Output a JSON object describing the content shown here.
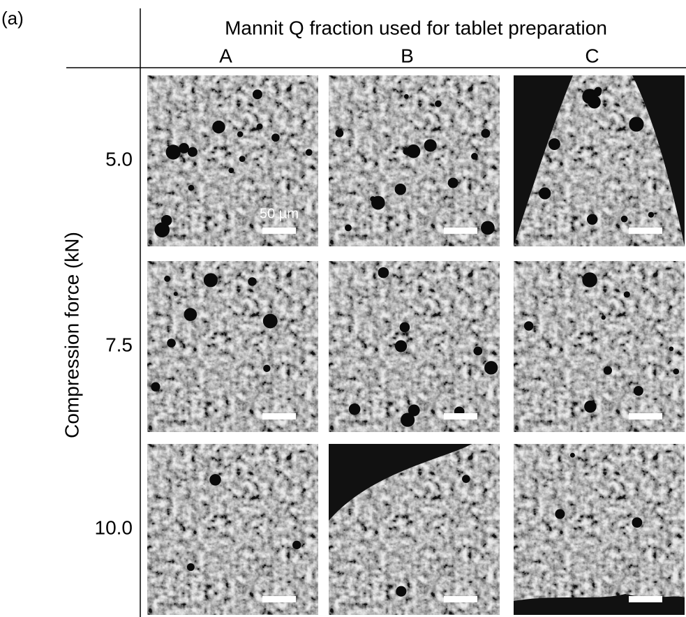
{
  "panel_label": "(a)",
  "header": {
    "title": "Mannit Q fraction used for tablet preparation",
    "columns": [
      "A",
      "B",
      "C"
    ]
  },
  "rows": {
    "title": "Compression force (kN)",
    "labels": [
      "5.0",
      "7.5",
      "10.0"
    ]
  },
  "scale_bar": "50 µm"
}
